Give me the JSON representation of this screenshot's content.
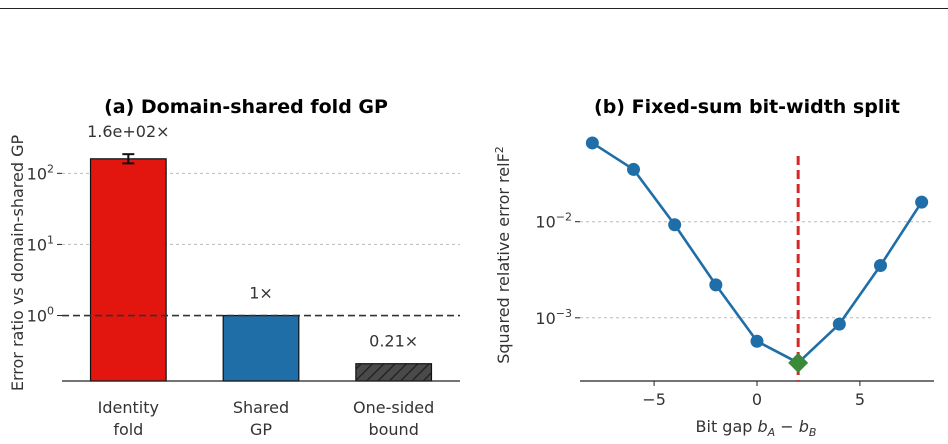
{
  "chart_data": [
    {
      "type": "bar",
      "title": "(a) Domain-shared fold GP",
      "ylabel": "Error ratio vs domain-shared GP",
      "yscale": "log",
      "ylim": [
        0.12,
        600
      ],
      "yticks": [
        {
          "value": 1,
          "base": "10",
          "exp": "0"
        },
        {
          "value": 10,
          "base": "10",
          "exp": "1"
        },
        {
          "value": 100,
          "base": "10",
          "exp": "2"
        }
      ],
      "reference_line": 1,
      "grid": "horizontal-dashed",
      "categories": [
        {
          "line1": "Identity",
          "line2": "fold"
        },
        {
          "line1": "Shared",
          "line2": "GP"
        },
        {
          "line1": "One-sided",
          "line2": "bound"
        }
      ],
      "values": [
        160,
        1.0,
        0.21
      ],
      "error_bars": [
        [
          138,
          186
        ],
        null,
        null
      ],
      "value_labels": [
        "1.6e+02×",
        "1×",
        "0.21×"
      ],
      "colors": [
        "#e3150f",
        "#1f6ea8",
        "#4a4a4a"
      ],
      "hatched": [
        false,
        false,
        true
      ]
    },
    {
      "type": "line",
      "title": "(b) Fixed-sum bit-width split",
      "ylabel_main": "Squared relative error  relF",
      "ylabel_sup": "2",
      "xlabel_prefix": "Bit gap  ",
      "xlabel_math": {
        "b1": "b",
        "s1": "A",
        "op": " − ",
        "b2": "b",
        "s2": "B"
      },
      "yscale": "log",
      "xlim": [
        -8.6,
        8.6
      ],
      "ylim": [
        0.00022,
        0.12
      ],
      "xticks": [
        {
          "value": -5,
          "label": "−5"
        },
        {
          "value": 0,
          "label": "0"
        },
        {
          "value": 5,
          "label": "5"
        }
      ],
      "yticks": [
        {
          "value": 0.001,
          "base": "10",
          "exp": "−3"
        },
        {
          "value": 0.01,
          "base": "10",
          "exp": "−2"
        }
      ],
      "grid": "horizontal-dashed",
      "x": [
        -8,
        -6,
        -4,
        -2,
        0,
        2,
        4,
        6,
        8
      ],
      "y": [
        0.066,
        0.035,
        0.0093,
        0.0022,
        0.00057,
        0.00034,
        0.00086,
        0.0035,
        0.016
      ],
      "line_color": "#1f6ea8",
      "optimum": {
        "x": 2,
        "y": 0.00034,
        "color": "#3a8a3a"
      },
      "vertical_marker": {
        "x": 2,
        "color": "#d62728"
      }
    }
  ]
}
